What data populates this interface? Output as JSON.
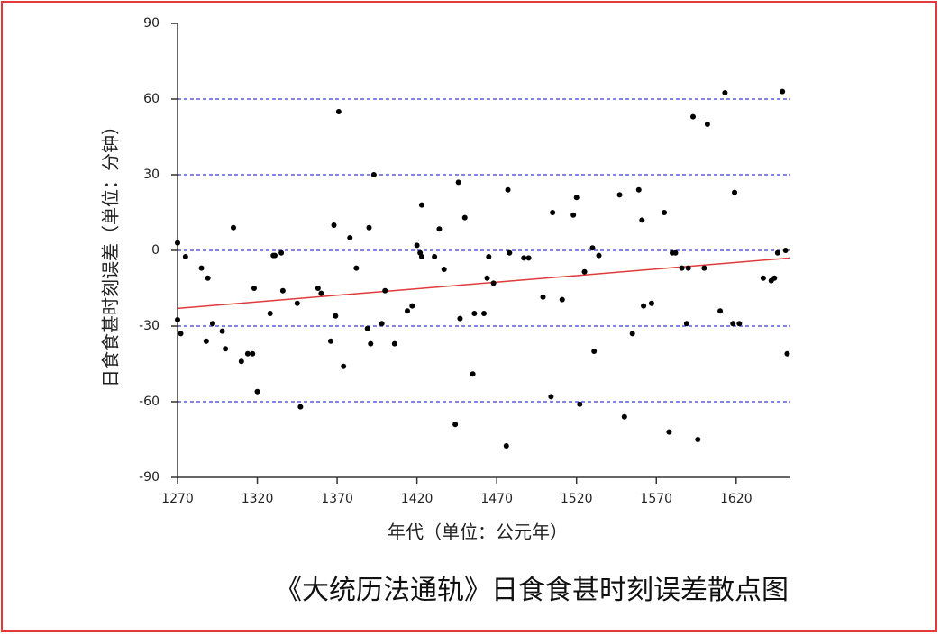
{
  "chart_data": {
    "type": "scatter",
    "title": "《大统历法通轨》日食食甚时刻误差散点图",
    "x_label": "年代（单位：公元年）",
    "y_label": "日食食甚时刻误差（单位：分钟）",
    "x": [
      1270,
      1270,
      1272,
      1275,
      1285,
      1288,
      1289,
      1292,
      1298,
      1300,
      1305,
      1310,
      1314,
      1317,
      1318,
      1320,
      1328,
      1330,
      1331,
      1335,
      1336,
      1345,
      1347,
      1358,
      1360,
      1366,
      1368,
      1369,
      1371,
      1374,
      1378,
      1382,
      1389,
      1390,
      1391,
      1393,
      1398,
      1400,
      1406,
      1414,
      1417,
      1420,
      1422,
      1423,
      1423,
      1431,
      1434,
      1437,
      1444,
      1446,
      1447,
      1450,
      1455,
      1456,
      1462,
      1464,
      1465,
      1468,
      1476,
      1477,
      1478,
      1487,
      1490,
      1499,
      1504,
      1505,
      1511,
      1518,
      1520,
      1522,
      1525,
      1530,
      1531,
      1534,
      1547,
      1550,
      1555,
      1559,
      1561,
      1562,
      1567,
      1575,
      1578,
      1580,
      1582,
      1586,
      1589,
      1590,
      1593,
      1596,
      1600,
      1602,
      1610,
      1613,
      1618,
      1619,
      1622,
      1637,
      1642,
      1644,
      1646,
      1649,
      1651,
      1652
    ],
    "values": [
      3,
      -27.5,
      -33,
      -2.5,
      -7,
      -36,
      -11,
      -29,
      -32,
      -39,
      9,
      -44,
      -41,
      -41,
      -15,
      -56,
      -25,
      -2,
      -2,
      -1,
      -16,
      -21,
      -62,
      -15,
      -17,
      -36,
      10,
      -26,
      55,
      -46,
      5,
      -7,
      -31,
      9,
      -37,
      30,
      -29,
      -16,
      -37,
      -24,
      -22,
      2,
      -1,
      18,
      -2.5,
      -2.5,
      8.5,
      -7.5,
      -69,
      27,
      -27,
      13,
      -49,
      -25,
      -25,
      -11,
      -2.5,
      -13,
      -77.5,
      24,
      -1,
      -3,
      -3,
      -18.5,
      -58,
      15,
      -19.5,
      14,
      21,
      -61,
      -8.5,
      1,
      -40,
      -2,
      22,
      -66,
      -33,
      24,
      12,
      -22,
      -21,
      15,
      -72,
      -1,
      -1,
      -7,
      -29,
      -7,
      53,
      -75,
      -7,
      50,
      -24,
      62.5,
      -29,
      23,
      -29,
      -11,
      -12,
      -11,
      -1,
      63,
      0,
      -41
    ],
    "color": "#000000",
    "trend_line": {
      "x": [
        1270,
        1654
      ],
      "values": [
        -23,
        -3
      ],
      "color": "#e03a3a"
    },
    "xlim": [
      1270,
      1654
    ],
    "ylim": [
      -90,
      90
    ],
    "xticks": [
      1270,
      1320,
      1370,
      1420,
      1470,
      1520,
      1570,
      1620
    ],
    "yticks": [
      -90,
      -60,
      -30,
      0,
      30,
      60,
      90
    ],
    "grid": true,
    "grid_color": "#3a3ad0"
  }
}
